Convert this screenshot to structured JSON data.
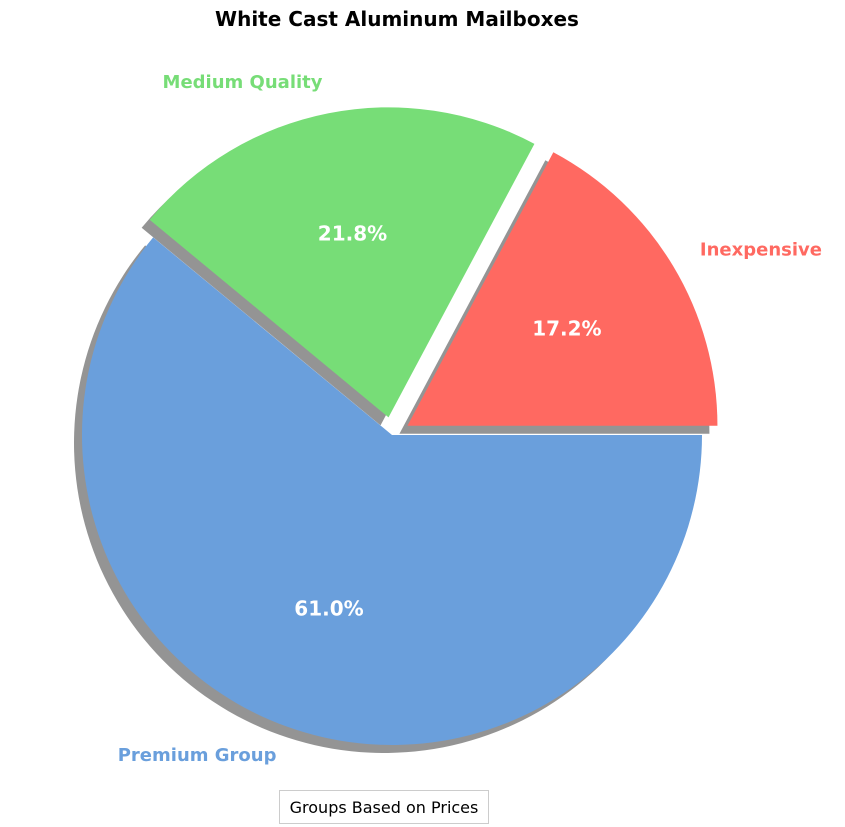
{
  "chart_data": {
    "type": "pie",
    "title": "White Cast Aluminum Mailboxes",
    "legend_title": "Groups Based on Prices",
    "legend_placement": "bottom-center",
    "categories": [
      "Inexpensive",
      "Medium Quality",
      "Premium Group"
    ],
    "values": [
      17.2,
      21.8,
      61.0
    ],
    "value_labels": [
      "17.2%",
      "21.8%",
      "61.0%"
    ],
    "colors": [
      "#ff6961",
      "#77dd77",
      "#6a9fdc"
    ],
    "exploded": [
      true,
      true,
      false
    ],
    "shadow": true,
    "start_angle": 0,
    "direction": "counterclockwise"
  }
}
